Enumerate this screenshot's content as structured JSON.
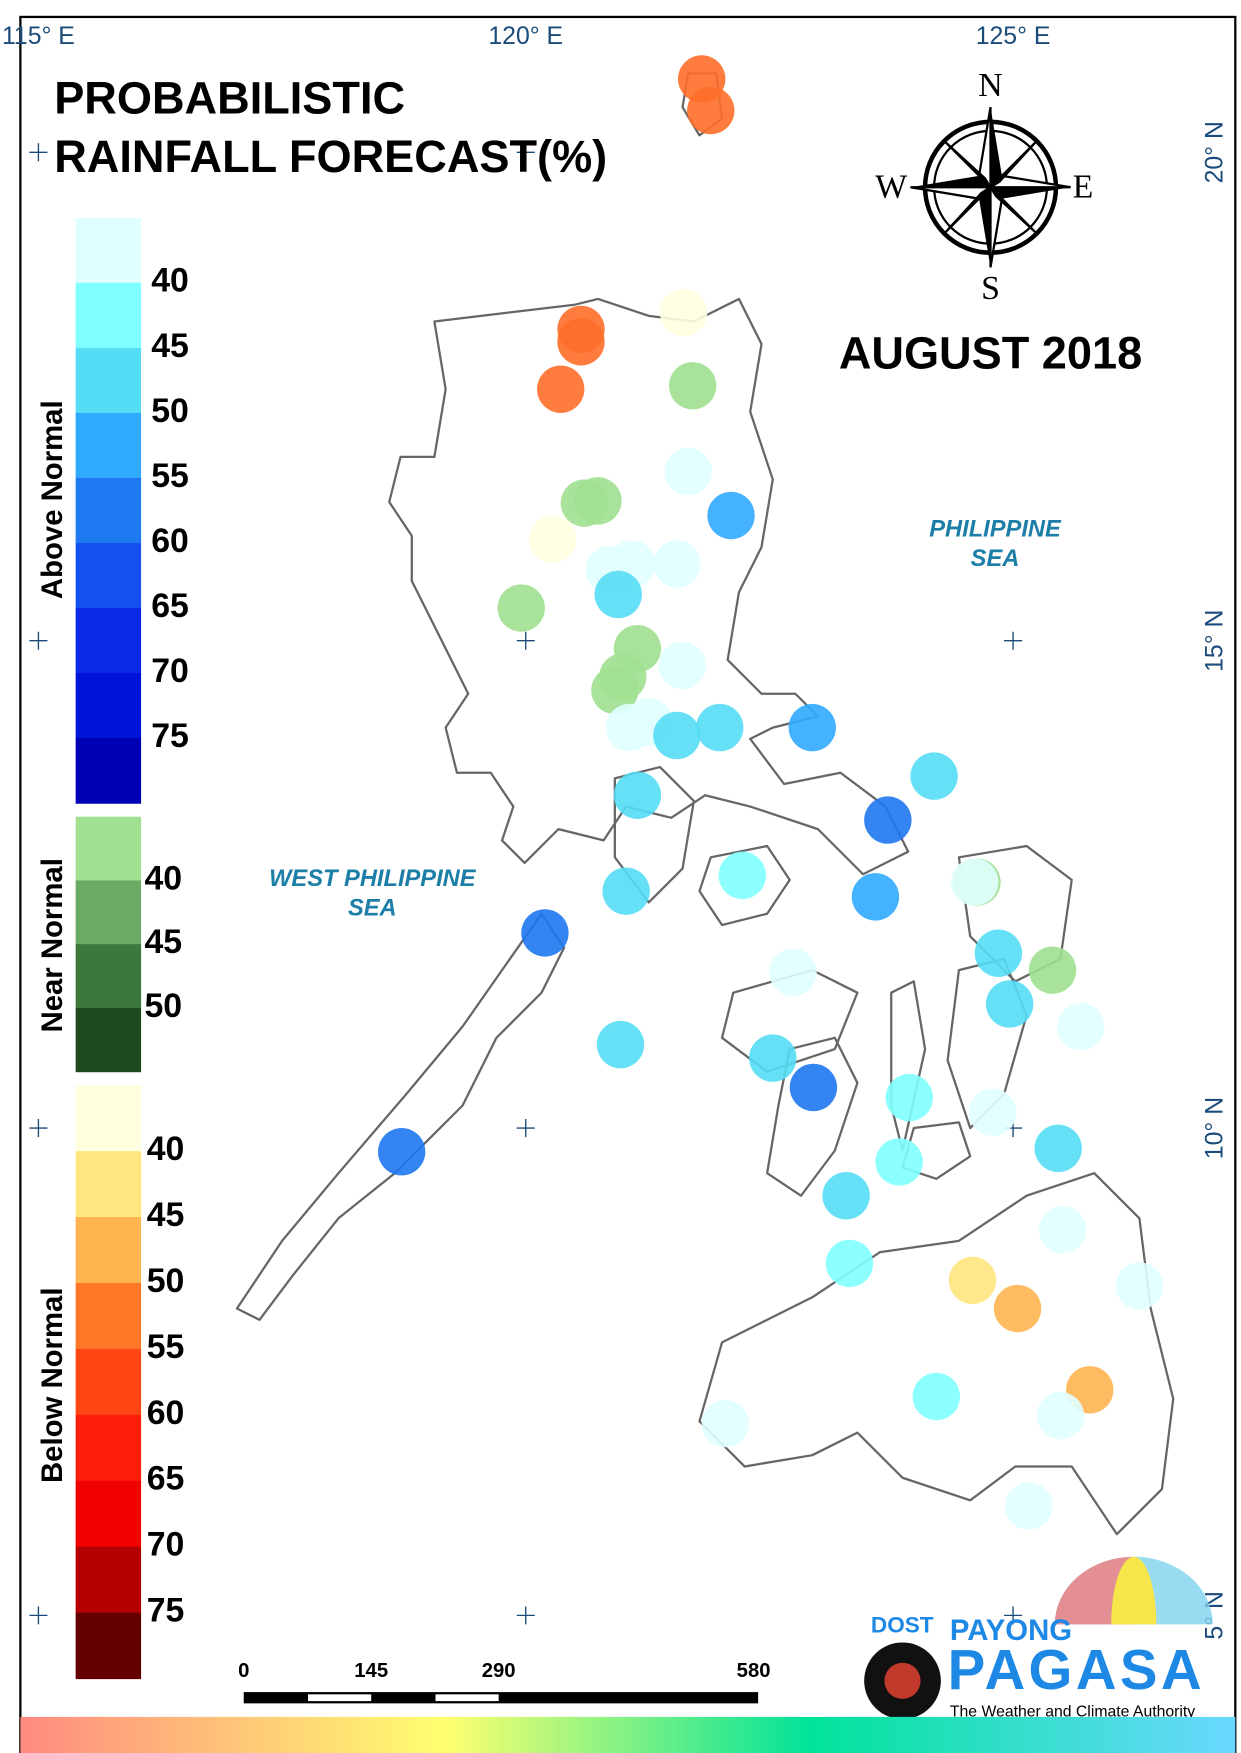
{
  "title": [
    "PROBABILISTIC",
    "RAINFALL FORECAST(%)"
  ],
  "period": "AUGUST 2018",
  "compass": {
    "n": "N",
    "e": "E",
    "s": "S",
    "w": "W"
  },
  "longitudes": [
    "115° E",
    "120° E",
    "125° E"
  ],
  "latitudes": [
    "20° N",
    "15° N",
    "10° N",
    "5° N"
  ],
  "seas": {
    "east": [
      "PHILIPPINE",
      "SEA"
    ],
    "west": [
      "WEST PHILIPPINE",
      "SEA"
    ]
  },
  "legend": {
    "above": {
      "label": "Above Normal",
      "ticks": [
        40,
        45,
        50,
        55,
        60,
        65,
        70,
        75
      ],
      "colors": [
        "#e0ffff",
        "#80ffff",
        "#55ddf5",
        "#30aaff",
        "#1e78f0",
        "#1450f0",
        "#0a28e6",
        "#0014d8",
        "#0000b4"
      ]
    },
    "near": {
      "label": "Near Normal",
      "ticks": [
        40,
        45,
        50
      ],
      "colors": [
        "#a0e090",
        "#6aaa64",
        "#3c783c",
        "#1e4b1e"
      ]
    },
    "below": {
      "label": "Below Normal",
      "ticks": [
        40,
        45,
        50,
        55,
        60,
        65,
        70,
        75
      ],
      "colors": [
        "#ffffe0",
        "#ffe680",
        "#ffb450",
        "#ff7828",
        "#ff4614",
        "#ff1e0a",
        "#f00000",
        "#b40000",
        "#640000"
      ]
    }
  },
  "scale_bar": [
    0,
    145,
    290,
    580
  ],
  "logo": {
    "agency": "DOST",
    "line1": "PAYONG",
    "line2": "PAGASA",
    "tagline": "The Weather and Climate Authority"
  }
}
